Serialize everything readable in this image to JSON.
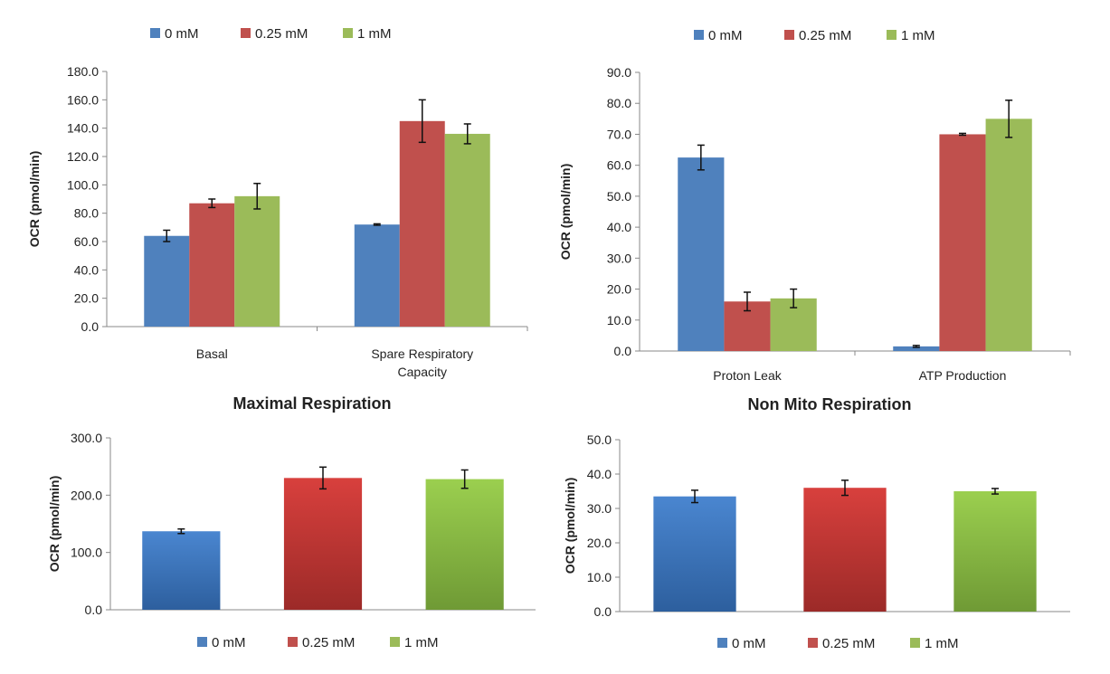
{
  "colors": {
    "0mM": "#4f81bd",
    "025mM": "#c0504d",
    "1mM": "#9bbb59",
    "axis": "#888888",
    "error": "#111111"
  },
  "legend": [
    "0 mM",
    "0.25 mM",
    "1 mM"
  ],
  "chart_data": [
    {
      "id": "chart-basal-spare",
      "type": "bar",
      "title": "",
      "ylabel": "OCR (pmol/min)",
      "ylim": [
        0,
        180
      ],
      "ystep": 20,
      "yticks": [
        "0.0",
        "20.0",
        "40.0",
        "60.0",
        "80.0",
        "100.0",
        "120.0",
        "140.0",
        "160.0",
        "180.0"
      ],
      "categories": [
        [
          "Basal"
        ],
        [
          "Spare Respiratory",
          "Capacity"
        ]
      ],
      "series": [
        {
          "name": "0 mM",
          "values": [
            64,
            72
          ],
          "errors": [
            4,
            0.5
          ]
        },
        {
          "name": "0.25 mM",
          "values": [
            87,
            145
          ],
          "errors": [
            3,
            15
          ]
        },
        {
          "name": "1 mM",
          "values": [
            92,
            136
          ],
          "errors": [
            9,
            7
          ]
        }
      ]
    },
    {
      "id": "chart-leak-atp",
      "type": "bar",
      "title": "",
      "ylabel": "OCR (pmol/min)",
      "ylim": [
        0,
        90
      ],
      "ystep": 10,
      "yticks": [
        "0.0",
        "10.0",
        "20.0",
        "30.0",
        "40.0",
        "50.0",
        "60.0",
        "70.0",
        "80.0",
        "90.0"
      ],
      "categories": [
        [
          "Proton Leak"
        ],
        [
          "ATP Production"
        ]
      ],
      "series": [
        {
          "name": "0 mM",
          "values": [
            62.5,
            1.5
          ],
          "errors": [
            4,
            0.3
          ]
        },
        {
          "name": "0.25 mM",
          "values": [
            16,
            70
          ],
          "errors": [
            3,
            0.3
          ]
        },
        {
          "name": "1 mM",
          "values": [
            17,
            75
          ],
          "errors": [
            3,
            6
          ]
        }
      ]
    },
    {
      "id": "chart-maximal",
      "type": "bar",
      "title": "Maximal Respiration",
      "ylabel": "OCR (pmol/min)",
      "ylim": [
        0,
        300
      ],
      "ystep": 100,
      "yticks": [
        "0.0",
        "100.0",
        "200.0",
        "300.0"
      ],
      "categories": [
        "0 mM",
        "0.25 mM",
        "1 mM"
      ],
      "values": [
        137,
        230,
        228
      ],
      "errors": [
        4,
        19,
        16
      ]
    },
    {
      "id": "chart-nonmito",
      "type": "bar",
      "title": "Non Mito Respiration",
      "ylabel": "OCR (pmol/min)",
      "ylim": [
        0,
        50
      ],
      "ystep": 10,
      "yticks": [
        "0.0",
        "10.0",
        "20.0",
        "30.0",
        "40.0",
        "50.0"
      ],
      "categories": [
        "0 mM",
        "0.25 mM",
        "1 mM"
      ],
      "values": [
        33.5,
        36,
        35
      ],
      "errors": [
        1.8,
        2.2,
        0.8
      ]
    }
  ]
}
